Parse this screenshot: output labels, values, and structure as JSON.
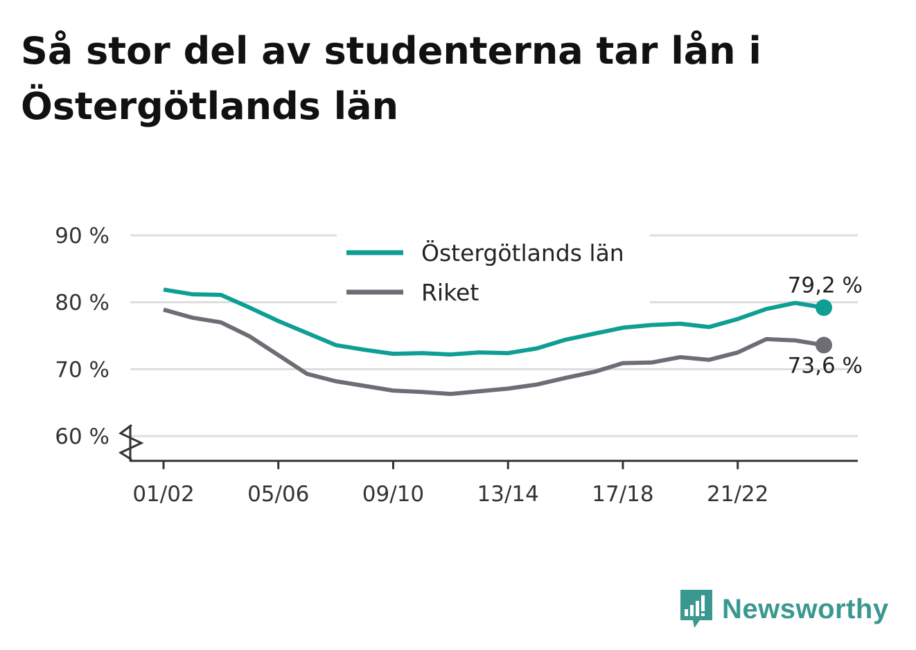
{
  "chart_data": {
    "type": "line",
    "title": "Så stor del av studenterna tar lån i Östergötlands län",
    "x": [
      "01/02",
      "02/03",
      "03/04",
      "04/05",
      "05/06",
      "06/07",
      "07/08",
      "08/09",
      "09/10",
      "10/11",
      "11/12",
      "12/13",
      "13/14",
      "14/15",
      "15/16",
      "16/17",
      "17/18",
      "18/19",
      "19/20",
      "20/21",
      "21/22",
      "22/23",
      "23/24",
      "24/25"
    ],
    "x_tick_labels": [
      "01/02",
      "05/06",
      "09/10",
      "13/14",
      "17/18",
      "21/22"
    ],
    "series": [
      {
        "name": "Östergötlands län",
        "color": "#0e9e94",
        "values": [
          81.9,
          81.2,
          81.1,
          79.2,
          77.2,
          75.4,
          73.6,
          72.9,
          72.3,
          72.4,
          72.2,
          72.5,
          72.4,
          73.1,
          74.4,
          75.3,
          76.2,
          76.6,
          76.8,
          76.3,
          77.5,
          79.0,
          79.9,
          79.2
        ],
        "end_label": "79,2 %"
      },
      {
        "name": "Riket",
        "color": "#6d6d75",
        "values": [
          78.9,
          77.7,
          77.0,
          74.9,
          72.1,
          69.3,
          68.2,
          67.5,
          66.8,
          66.6,
          66.3,
          66.7,
          67.1,
          67.7,
          68.7,
          69.6,
          70.9,
          71.0,
          71.8,
          71.4,
          72.5,
          74.5,
          74.3,
          73.6
        ],
        "end_label": "73,6 %"
      }
    ],
    "yticks": [
      60,
      70,
      80,
      90
    ],
    "ytick_labels": [
      "60 %",
      "70 %",
      "80 %",
      "90 %"
    ],
    "ylim": [
      56.3,
      90
    ],
    "axis_break": true,
    "grid": true,
    "legend_position": "top-center"
  },
  "brand": {
    "name": "Newsworthy",
    "color": "#3a9890"
  }
}
